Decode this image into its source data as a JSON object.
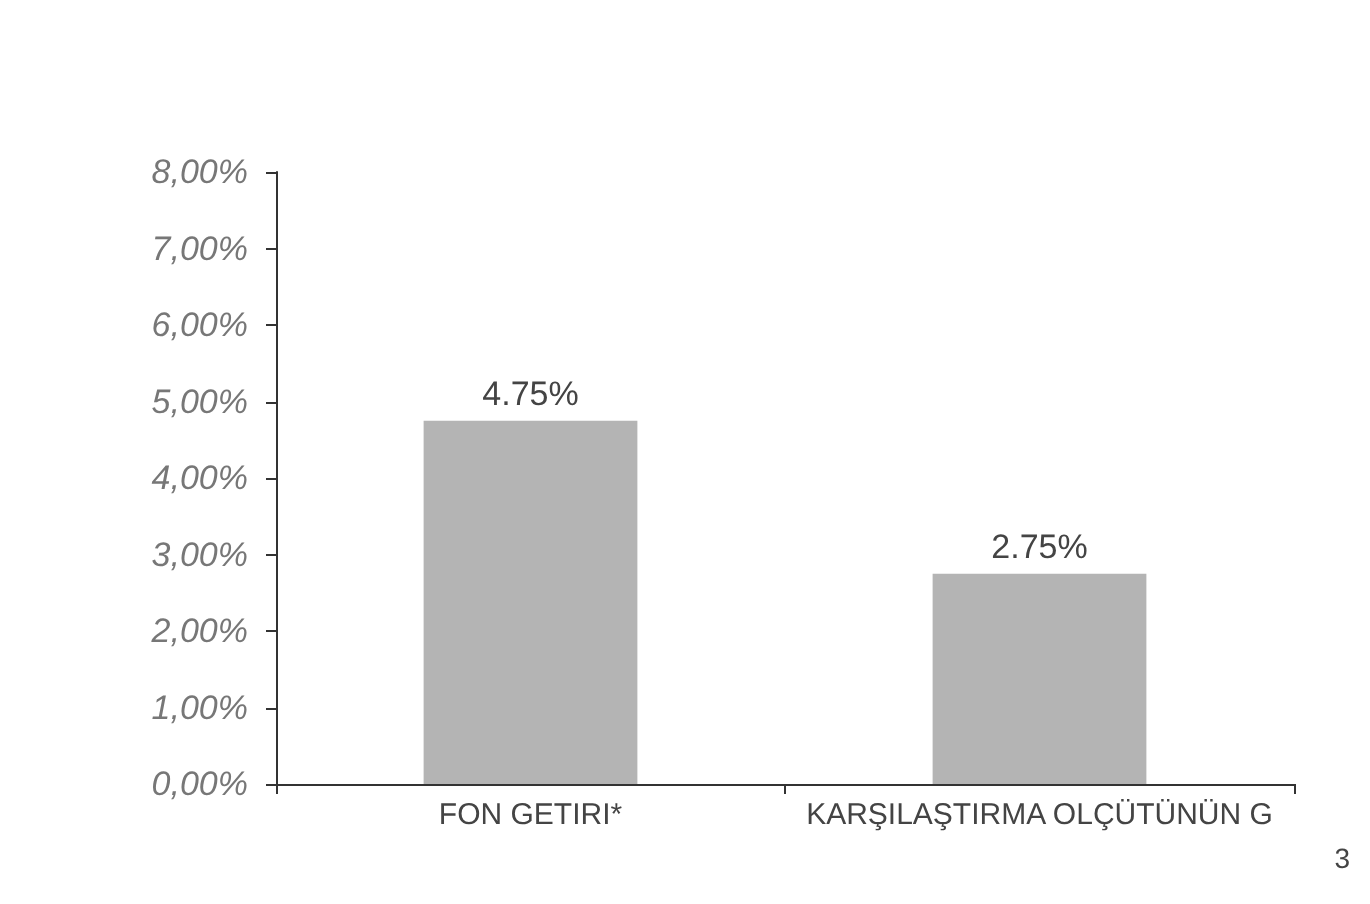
{
  "chart_data": {
    "type": "bar",
    "categories": [
      "FON GETIRI*",
      "KARŞILAŞTIRMA OLÇÜTÜNÜN G"
    ],
    "values": [
      4.75,
      2.75
    ],
    "value_labels": [
      "4.75%",
      "2.75%"
    ],
    "color": "#b4b4b4",
    "ylim": [
      0,
      8
    ],
    "yticks": [
      {
        "value": 0,
        "label": "0,00%"
      },
      {
        "value": 1,
        "label": "1,00%"
      },
      {
        "value": 2,
        "label": "2,00%"
      },
      {
        "value": 3,
        "label": "3,00%"
      },
      {
        "value": 4,
        "label": "4,00%"
      },
      {
        "value": 5,
        "label": "5,00%"
      },
      {
        "value": 6,
        "label": "6,00%"
      },
      {
        "value": 7,
        "label": "7,00%"
      },
      {
        "value": 8,
        "label": "8,00%"
      }
    ],
    "annotations": [
      "3"
    ]
  }
}
